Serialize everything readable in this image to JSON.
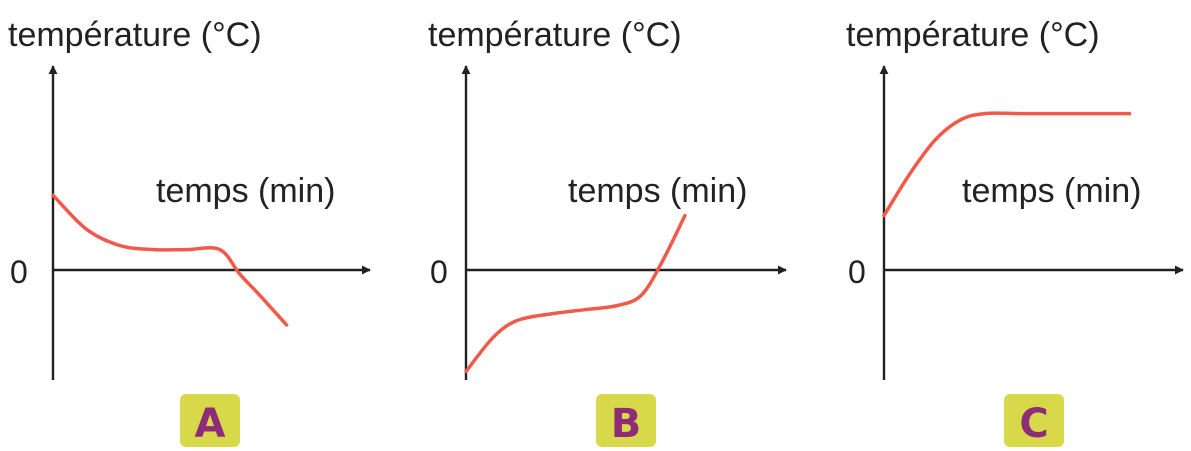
{
  "colors": {
    "curve": "#f15a4a",
    "axis": "#222222",
    "badge_fill": "#d8d94a",
    "badge_text": "#8e2c7a"
  },
  "chart_data": [
    {
      "type": "line",
      "panel": "A",
      "ylabel": "température (°C)",
      "xlabel": "temps (min)",
      "zero_label": "0",
      "x": [
        0,
        1,
        2,
        3,
        4,
        5,
        5.6,
        6.2,
        7.0
      ],
      "y": [
        5.5,
        3.0,
        1.8,
        1.5,
        1.5,
        1.5,
        -0.5,
        -3.0,
        -6.5
      ],
      "xlim": [
        0,
        9.5
      ],
      "ylim": [
        -13,
        15
      ]
    },
    {
      "type": "line",
      "panel": "B",
      "ylabel": "température (°C)",
      "xlabel": "temps (min)",
      "zero_label": "0",
      "x": [
        0,
        0.8,
        1.5,
        2.5,
        3.5,
        4.5,
        5.2,
        5.8,
        6.5
      ],
      "y": [
        -12.0,
        -8.0,
        -6.0,
        -5.2,
        -4.7,
        -4.2,
        -3.0,
        0.5,
        4.0
      ],
      "xlim": [
        0,
        9.5
      ],
      "ylim": [
        -13,
        15
      ]
    },
    {
      "type": "line",
      "panel": "C",
      "ylabel": "température (°C)",
      "xlabel": "temps (min)",
      "zero_label": "0",
      "x": [
        0,
        0.8,
        1.6,
        2.4,
        3.2,
        4.5,
        6.0,
        7.8
      ],
      "y": [
        4.0,
        7.0,
        9.5,
        11.0,
        11.5,
        11.5,
        11.5,
        11.5
      ],
      "xlim": [
        0,
        9.5
      ],
      "ylim": [
        -13,
        15
      ]
    }
  ]
}
